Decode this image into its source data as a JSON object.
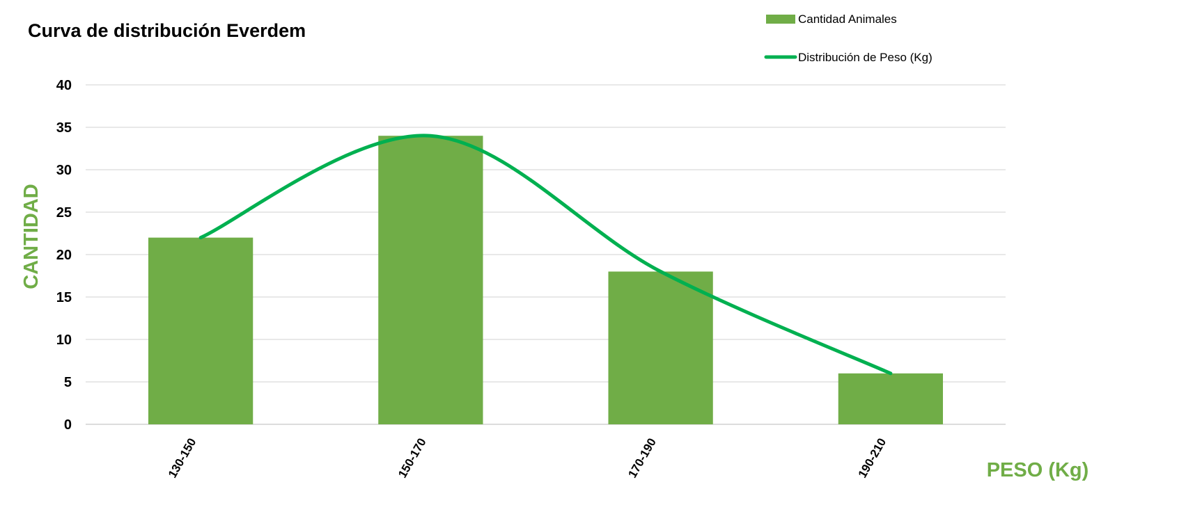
{
  "colors": {
    "bar": "#70AD47",
    "line": "#00B050",
    "axis_title": "#70AD47",
    "grid": "#D0D0D0",
    "text": "#000000"
  },
  "chart_data": {
    "type": "bar",
    "title": "Curva de distribución Everdem",
    "xlabel": "PESO (Kg)",
    "ylabel": "CANTIDAD",
    "categories": [
      "130-150",
      "150-170",
      "170-190",
      "190-210"
    ],
    "series": [
      {
        "name": "Cantidad Animales",
        "type": "bar",
        "values": [
          22,
          34,
          18,
          6
        ]
      },
      {
        "name": "Distribución de Peso (Kg)",
        "type": "line",
        "smooth": true,
        "values": [
          22,
          34,
          18,
          6
        ]
      }
    ],
    "ylim": [
      0,
      40
    ],
    "yticks": [
      "0",
      "5",
      "10",
      "15",
      "20",
      "25",
      "30",
      "35",
      "40"
    ],
    "grid": true,
    "legend_position": "top-right"
  }
}
